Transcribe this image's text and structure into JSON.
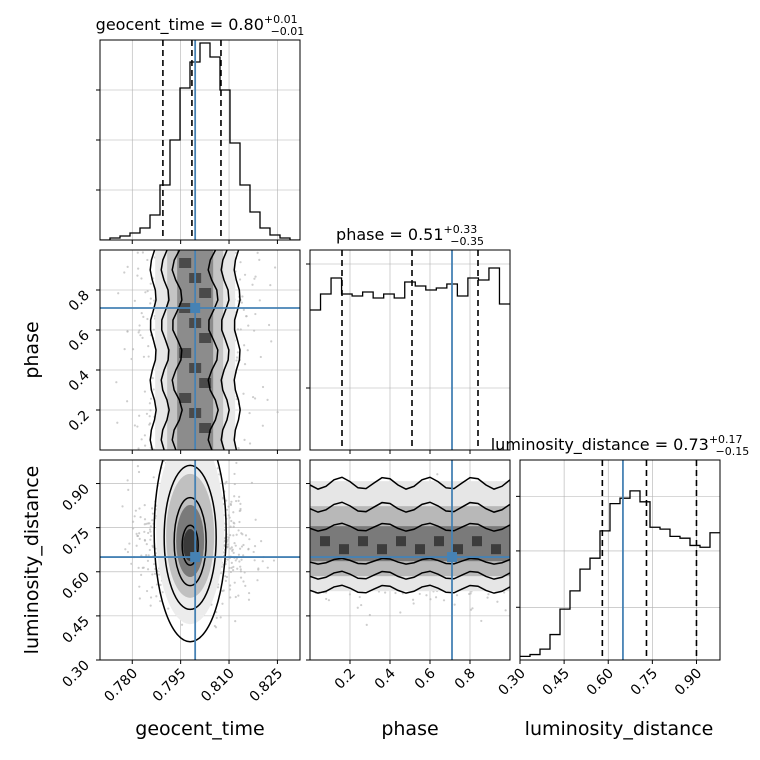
{
  "chart_data": {
    "type": "corner",
    "colors": {
      "truth": "#4682b4",
      "line": "#000000",
      "grid": "#b0b0b0",
      "sample": "#b8b8b8"
    },
    "parameters": [
      {
        "name": "geocent_time",
        "xlim": [
          0.77,
          0.832
        ],
        "ticks": [
          0.78,
          0.795,
          0.81,
          0.825
        ],
        "tick_labels": [
          "0.780",
          "0.795",
          "0.810",
          "0.825"
        ],
        "truth": 0.7995,
        "quantiles": [
          0.7895,
          0.7985,
          0.8075
        ],
        "title": {
          "main": "geocent_time = 0.80",
          "sup": "+0.01",
          "sub": "−0.01"
        },
        "hist_counts": [
          0,
          2,
          4,
          7,
          12,
          25,
          55,
          100,
          152,
          178,
          197,
          183,
          150,
          97,
          55,
          28,
          12,
          5,
          2,
          0
        ],
        "hist_ylim": [
          0,
          200
        ],
        "hist_yticks": [
          50,
          100,
          150
        ]
      },
      {
        "name": "phase",
        "xlim": [
          0.0,
          1.0
        ],
        "ticks": [
          0.2,
          0.4,
          0.6,
          0.8
        ],
        "tick_labels": [
          "0.2",
          "0.4",
          "0.6",
          "0.8"
        ],
        "truth": 0.71,
        "quantiles": [
          0.16,
          0.51,
          0.84
        ],
        "title": {
          "main": "phase = 0.51",
          "sup": "+0.33",
          "sub": "−0.35"
        },
        "hist_counts": [
          70,
          78,
          86,
          78,
          77,
          79,
          76,
          78,
          76,
          84,
          82,
          80,
          81,
          83,
          77,
          86,
          85,
          91,
          73
        ],
        "hist_ylim": [
          0,
          100
        ],
        "hist_yticks": [
          31,
          93
        ]
      },
      {
        "name": "luminosity_distance",
        "xlim": [
          0.3,
          0.98
        ],
        "ticks": [
          0.3,
          0.45,
          0.6,
          0.75,
          0.9
        ],
        "tick_labels": [
          "0.30",
          "0.45",
          "0.60",
          "0.75",
          "0.90"
        ],
        "truth": 0.65,
        "quantiles": [
          0.58,
          0.73,
          0.9
        ],
        "title": {
          "main": "luminosity_distance = 0.73",
          "sup": "+0.17",
          "sub": "−0.15"
        },
        "hist_counts": [
          2,
          3,
          6,
          14,
          28,
          38,
          50,
          56,
          71,
          86,
          89,
          93,
          87,
          73,
          72,
          68,
          67,
          63,
          62,
          70
        ],
        "hist_ylim": [
          0,
          110
        ],
        "hist_yticks": [
          29,
          60,
          90
        ]
      }
    ],
    "pair_panels": [
      {
        "x": 0,
        "y": 1,
        "truth": [
          0.7995,
          0.71
        ],
        "yticks": [
          0.2,
          0.4,
          0.6,
          0.8
        ],
        "ylim": [
          0.0,
          1.0
        ]
      },
      {
        "x": 0,
        "y": 2,
        "truth": [
          0.7995,
          0.65
        ],
        "yticks": [
          0.3,
          0.45,
          0.6,
          0.75,
          0.9
        ],
        "ylim": [
          0.3,
          0.98
        ]
      },
      {
        "x": 1,
        "y": 2,
        "truth": [
          0.71,
          0.65
        ],
        "ylim": [
          0.3,
          0.98
        ]
      }
    ]
  }
}
